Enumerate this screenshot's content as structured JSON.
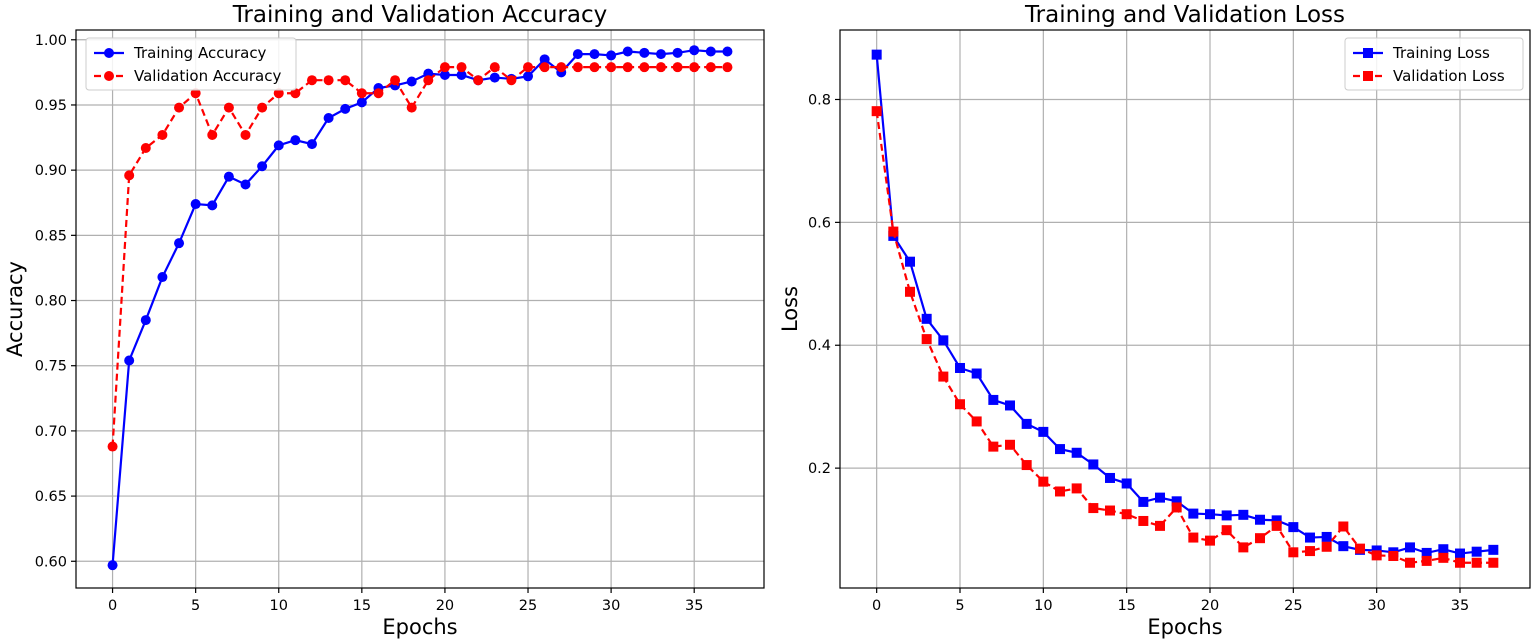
{
  "chart_data": [
    {
      "type": "line",
      "title": "Training and Validation Accuracy",
      "xlabel": "Epochs",
      "ylabel": "Accuracy",
      "xlim": [
        -2.2,
        39.2
      ],
      "ylim": [
        0.5795,
        1.0075
      ],
      "grid": true,
      "legend": "top-left",
      "xticks": [
        0,
        5,
        10,
        15,
        20,
        25,
        30,
        35
      ],
      "yticks": [
        0.6,
        0.65,
        0.7,
        0.75,
        0.8,
        0.85,
        0.9,
        0.95,
        1.0
      ],
      "ytick_format": 2,
      "x": [
        0,
        1,
        2,
        3,
        4,
        5,
        6,
        7,
        8,
        9,
        10,
        11,
        12,
        13,
        14,
        15,
        16,
        17,
        18,
        19,
        20,
        21,
        22,
        23,
        24,
        25,
        26,
        27,
        28,
        29,
        30,
        31,
        32,
        33,
        34,
        35,
        36,
        37
      ],
      "series": [
        {
          "name": "Training Accuracy",
          "color": "#0000ff",
          "dash": "solid",
          "marker": "circle",
          "values": [
            0.597,
            0.754,
            0.785,
            0.818,
            0.844,
            0.874,
            0.873,
            0.895,
            0.889,
            0.903,
            0.919,
            0.923,
            0.92,
            0.94,
            0.947,
            0.952,
            0.963,
            0.965,
            0.968,
            0.974,
            0.973,
            0.973,
            0.969,
            0.971,
            0.97,
            0.972,
            0.985,
            0.975,
            0.989,
            0.989,
            0.988,
            0.991,
            0.99,
            0.989,
            0.99,
            0.992,
            0.991,
            0.991
          ]
        },
        {
          "name": "Validation Accuracy",
          "color": "#ff0000",
          "dash": "dashed",
          "marker": "circle",
          "values": [
            0.688,
            0.896,
            0.917,
            0.927,
            0.948,
            0.959,
            0.927,
            0.948,
            0.927,
            0.948,
            0.959,
            0.959,
            0.969,
            0.969,
            0.969,
            0.959,
            0.959,
            0.969,
            0.948,
            0.969,
            0.979,
            0.979,
            0.969,
            0.979,
            0.969,
            0.979,
            0.979,
            0.979,
            0.979,
            0.979,
            0.979,
            0.979,
            0.979,
            0.979,
            0.979,
            0.979,
            0.979,
            0.979
          ]
        }
      ]
    },
    {
      "type": "line",
      "title": "Training and Validation Loss",
      "xlabel": "Epochs",
      "ylabel": "Loss",
      "xlim": [
        -2.2,
        39.2
      ],
      "ylim": [
        0.0049,
        0.9131
      ],
      "grid": true,
      "legend": "top-right",
      "xticks": [
        0,
        5,
        10,
        15,
        20,
        25,
        30,
        35
      ],
      "yticks": [
        0.2,
        0.4,
        0.6,
        0.8
      ],
      "ytick_format": 1,
      "x": [
        0,
        1,
        2,
        3,
        4,
        5,
        6,
        7,
        8,
        9,
        10,
        11,
        12,
        13,
        14,
        15,
        16,
        17,
        18,
        19,
        20,
        21,
        22,
        23,
        24,
        25,
        26,
        27,
        28,
        29,
        30,
        31,
        32,
        33,
        34,
        35,
        36,
        37
      ],
      "series": [
        {
          "name": "Training Loss",
          "color": "#0000ff",
          "dash": "solid",
          "marker": "square",
          "values": [
            0.873,
            0.578,
            0.536,
            0.443,
            0.408,
            0.363,
            0.354,
            0.311,
            0.302,
            0.272,
            0.259,
            0.231,
            0.225,
            0.206,
            0.184,
            0.175,
            0.145,
            0.152,
            0.146,
            0.126,
            0.125,
            0.123,
            0.124,
            0.116,
            0.115,
            0.104,
            0.087,
            0.088,
            0.073,
            0.067,
            0.066,
            0.063,
            0.071,
            0.062,
            0.068,
            0.061,
            0.064,
            0.067
          ]
        },
        {
          "name": "Validation Loss",
          "color": "#ff0000",
          "dash": "dashed",
          "marker": "square",
          "values": [
            0.781,
            0.585,
            0.487,
            0.41,
            0.349,
            0.304,
            0.276,
            0.235,
            0.238,
            0.205,
            0.178,
            0.162,
            0.167,
            0.135,
            0.131,
            0.125,
            0.114,
            0.106,
            0.136,
            0.087,
            0.082,
            0.099,
            0.071,
            0.086,
            0.106,
            0.063,
            0.065,
            0.072,
            0.105,
            0.069,
            0.058,
            0.057,
            0.046,
            0.049,
            0.054,
            0.046,
            0.046,
            0.046
          ]
        }
      ]
    }
  ]
}
